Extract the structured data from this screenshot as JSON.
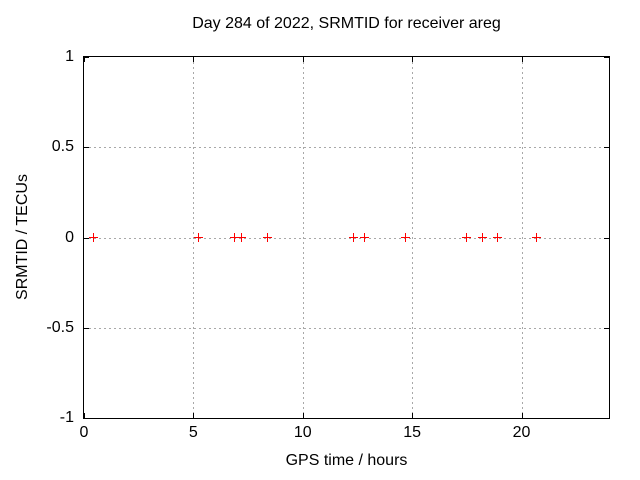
{
  "chart_data": {
    "type": "scatter",
    "title": "Day 284 of 2022, SRMTID for receiver areg",
    "xlabel": "GPS time / hours",
    "ylabel": "SRMTID / TECUs",
    "xlim": [
      0,
      24
    ],
    "ylim": [
      -1,
      1
    ],
    "xticks": {
      "values": [
        0,
        5,
        10,
        15,
        20
      ],
      "labels": [
        "0",
        "5",
        "10",
        "15",
        "20"
      ]
    },
    "yticks": {
      "values": [
        1,
        0.5,
        0,
        -0.5,
        -1
      ],
      "labels": [
        "1",
        "0.5",
        "0",
        "-0.5",
        "-1"
      ]
    },
    "grid": true,
    "legend": "none",
    "marker_style": "plus",
    "colors": {
      "marker": "#ff0000",
      "grid": "#a8a8a8",
      "axis": "#000000",
      "background": "#ffffff",
      "text": "#000000"
    },
    "series": [
      {
        "name": "SRMTID",
        "color": "#ff0000",
        "x": [
          0.45,
          5.25,
          6.9,
          7.2,
          8.4,
          12.3,
          12.8,
          14.7,
          17.5,
          18.2,
          18.9,
          20.7
        ],
        "y": [
          0,
          0,
          0,
          0,
          0,
          0,
          0,
          0,
          0,
          0,
          0,
          0
        ]
      }
    ]
  }
}
